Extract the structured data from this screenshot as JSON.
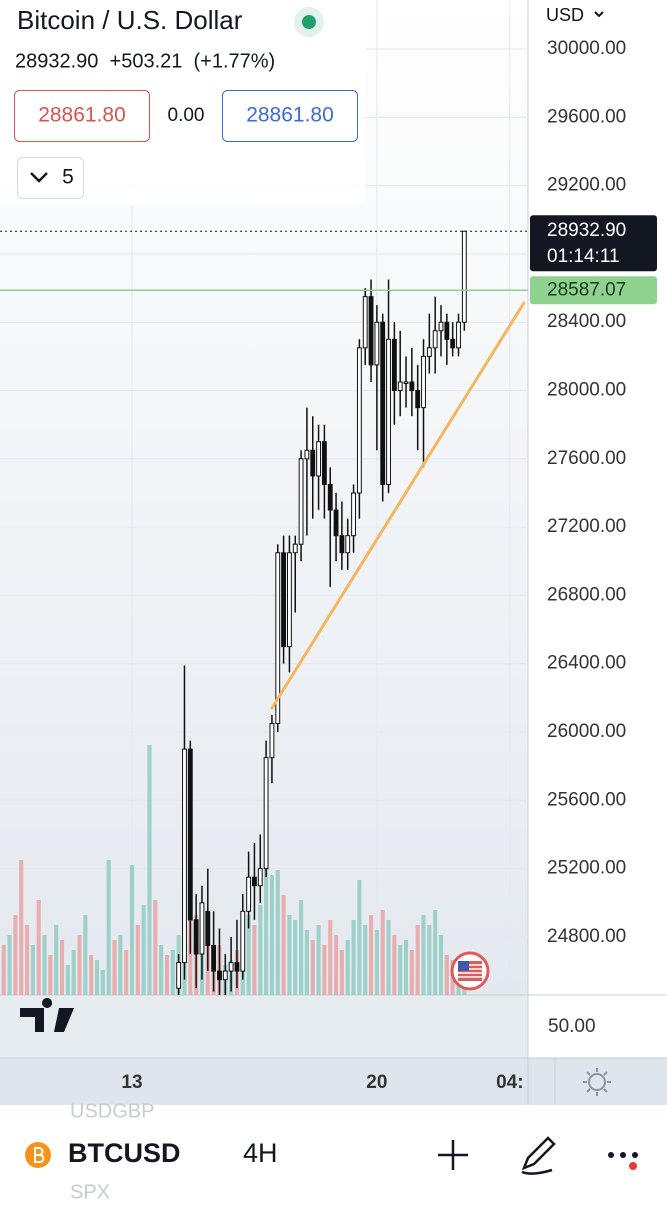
{
  "ui": {
    "title": "Bitcoin / U.S. Dollar",
    "quote": "28932.90  +503.21  (+1.77%)",
    "sell": "28861.80",
    "spread": "0.00",
    "buy": "28861.80",
    "collapse": "5",
    "currency": "USD",
    "pane_value": "50.00",
    "symbol": "BTCUSD",
    "interval": "4H",
    "ghost_top": "USDGBP",
    "ghost_bottom": "SPX"
  },
  "chart_data": {
    "type": "candlestick",
    "candle_color": "#111111",
    "x": [
      8,
      9,
      10,
      11,
      12,
      13,
      14,
      15,
      16,
      17,
      18,
      19,
      20,
      21,
      22,
      23,
      24,
      25,
      26,
      27,
      28,
      29,
      30,
      31,
      32,
      33,
      34,
      35,
      36,
      37,
      38,
      39,
      40,
      41,
      42,
      43,
      44,
      45,
      46,
      47,
      48,
      49,
      50,
      51,
      52,
      53,
      54,
      55,
      56,
      57
    ],
    "open": [
      24500,
      24650,
      25900,
      24900,
      24700,
      24950,
      24750,
      24600,
      24550,
      24600,
      24650,
      24600,
      24950,
      25150,
      25100,
      25200,
      25850,
      26050,
      27050,
      26500,
      27050,
      27100,
      27600,
      27650,
      27500,
      27700,
      27450,
      27300,
      27150,
      27050,
      27150,
      27400,
      28250,
      28550,
      28150,
      28400,
      27450,
      28300,
      28000,
      28050,
      28050,
      28000,
      27900,
      28200,
      28250,
      28350,
      28400,
      28300,
      28250,
      28400
    ],
    "high": [
      24700,
      26390,
      25950,
      25050,
      25100,
      25200,
      24950,
      24850,
      24700,
      24800,
      24900,
      25050,
      25300,
      25350,
      25400,
      25950,
      26100,
      27100,
      27150,
      27150,
      27150,
      27650,
      27900,
      27850,
      27800,
      27800,
      27550,
      27400,
      27350,
      27250,
      27450,
      28300,
      28600,
      28650,
      28500,
      28450,
      28650,
      28400,
      28350,
      28200,
      28250,
      28150,
      28300,
      28450,
      28550,
      28500,
      28450,
      28400,
      28450,
      28932.9
    ],
    "low": [
      24460,
      24550,
      24700,
      24500,
      24550,
      24600,
      24480,
      24460,
      24460,
      24480,
      24500,
      24550,
      24850,
      24900,
      25000,
      25150,
      25700,
      26000,
      26400,
      26350,
      26700,
      27000,
      27150,
      27250,
      27300,
      27250,
      26850,
      27000,
      26950,
      26950,
      27050,
      27250,
      28150,
      28050,
      27650,
      27350,
      27400,
      27800,
      27850,
      27900,
      27850,
      27650,
      27550,
      28100,
      28100,
      28200,
      28150,
      28200,
      28200,
      28350
    ],
    "close": [
      24650,
      25900,
      24900,
      24700,
      25000,
      24750,
      24600,
      24550,
      24600,
      24650,
      24600,
      24950,
      25150,
      25100,
      25200,
      25850,
      26050,
      27050,
      26500,
      27050,
      27100,
      27600,
      27650,
      27500,
      27700,
      27450,
      27300,
      27150,
      27050,
      27150,
      27400,
      28250,
      28550,
      28150,
      28400,
      27450,
      28300,
      28000,
      28050,
      28050,
      28000,
      27900,
      28200,
      28250,
      28350,
      28400,
      28300,
      28250,
      28400,
      28932.9
    ],
    "volume": {
      "x": [
        -22,
        -21,
        -20,
        -19,
        -18,
        -17,
        -16,
        -15,
        -14,
        -13,
        -12,
        -11,
        -10,
        -9,
        -8,
        -7,
        -6,
        -5,
        -4,
        -3,
        -2,
        -1,
        0,
        1,
        2,
        3,
        4,
        5,
        6,
        7,
        8,
        9,
        10,
        11,
        12,
        13,
        14,
        15,
        16,
        17,
        18,
        19,
        20,
        21,
        22,
        23,
        24,
        25,
        26,
        27,
        28,
        29,
        30,
        31,
        32,
        33,
        34,
        35,
        36,
        37,
        38,
        39,
        40,
        41,
        42,
        43,
        44,
        45,
        46,
        47,
        48,
        49,
        50,
        51,
        52,
        53,
        54,
        55,
        56,
        57
      ],
      "series": [
        {
          "color": "#8fcbc2",
          "values": [
            null,
            60,
            null,
            null,
            null,
            50,
            null,
            60,
            null,
            70,
            null,
            30,
            45,
            null,
            80,
            null,
            35,
            25,
            135,
            null,
            60,
            null,
            130,
            null,
            90,
            250,
            null,
            50,
            null,
            45,
            60,
            110,
            null,
            null,
            70,
            null,
            null,
            null,
            30,
            35,
            null,
            60,
            80,
            null,
            90,
            140,
            120,
            125,
            null,
            80,
            75,
            95,
            65,
            null,
            70,
            null,
            null,
            null,
            null,
            55,
            75,
            115,
            70,
            null,
            65,
            null,
            75,
            null,
            50,
            55,
            null,
            null,
            80,
            70,
            85,
            60,
            null,
            null,
            20,
            15
          ]
        },
        {
          "color": "#e9a3a3",
          "values": [
            50,
            null,
            80,
            135,
            70,
            null,
            95,
            null,
            40,
            null,
            55,
            null,
            null,
            60,
            null,
            40,
            null,
            null,
            null,
            55,
            null,
            45,
            null,
            70,
            null,
            null,
            95,
            null,
            40,
            null,
            null,
            null,
            90,
            80,
            null,
            60,
            40,
            50,
            null,
            null,
            45,
            null,
            null,
            70,
            null,
            null,
            null,
            null,
            100,
            null,
            null,
            null,
            null,
            55,
            null,
            50,
            75,
            60,
            45,
            null,
            null,
            null,
            null,
            80,
            null,
            85,
            null,
            60,
            null,
            null,
            45,
            70,
            null,
            null,
            null,
            null,
            40,
            35,
            null,
            null
          ]
        }
      ]
    },
    "xlim": [
      -22.64,
      67.92
    ],
    "xticks": [
      {
        "value": 0,
        "label": "13"
      },
      {
        "value": 42,
        "label": "20"
      },
      {
        "value": 64.8,
        "label": "04:"
      }
    ],
    "ylim": [
      24460,
      30287
    ],
    "yticks": [
      {
        "value": 30000,
        "label": "30000.00"
      },
      {
        "value": 29600,
        "label": "29600.00"
      },
      {
        "value": 29200,
        "label": "29200.00"
      },
      {
        "value": 28800,
        "label": "28800.00"
      },
      {
        "value": 28400,
        "label": "28400.00"
      },
      {
        "value": 28000,
        "label": "28000.00"
      },
      {
        "value": 27600,
        "label": "27600.00"
      },
      {
        "value": 27200,
        "label": "27200.00"
      },
      {
        "value": 26800,
        "label": "26800.00"
      },
      {
        "value": 26400,
        "label": "26400.00"
      },
      {
        "value": 26000,
        "label": "26000.00"
      },
      {
        "value": 25600,
        "label": "25600.00"
      },
      {
        "value": 25200,
        "label": "25200.00"
      },
      {
        "value": 24800,
        "label": "24800.00"
      }
    ],
    "grid": true,
    "last_price": {
      "value": 28932.9,
      "label": "28932.90",
      "countdown": "01:14:11"
    },
    "price_line": {
      "value": 28587.07,
      "label": "28587.07",
      "color": "#8fd18f"
    },
    "trendline": {
      "x": [
        24,
        67.2
      ],
      "values": [
        26140,
        28512
      ],
      "color": "#f5b660"
    }
  }
}
